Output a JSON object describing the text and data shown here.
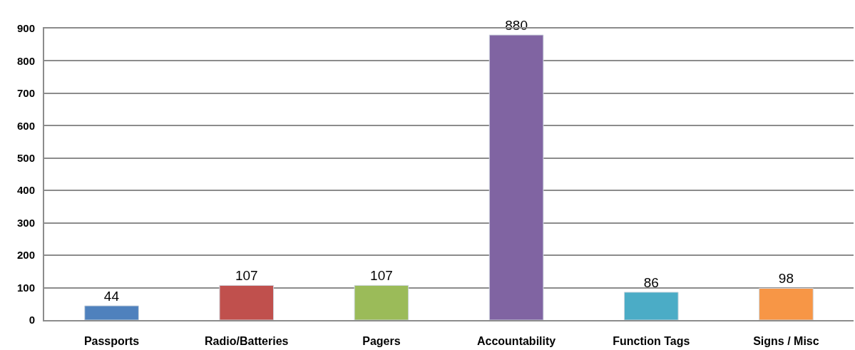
{
  "chart_data": {
    "type": "bar",
    "categories": [
      "Passports",
      "Radio/Batteries",
      "Pagers",
      "Accountability",
      "Function Tags",
      "Signs / Misc"
    ],
    "values": [
      44,
      107,
      107,
      880,
      86,
      98
    ],
    "colors": [
      "#4f81bd",
      "#c0504d",
      "#9bbb59",
      "#8064a2",
      "#4bacc6",
      "#f79646"
    ],
    "ylim": [
      0,
      900
    ],
    "yticks": [
      0,
      100,
      200,
      300,
      400,
      500,
      600,
      700,
      800,
      900
    ],
    "grid": "y",
    "data_labels": true
  }
}
